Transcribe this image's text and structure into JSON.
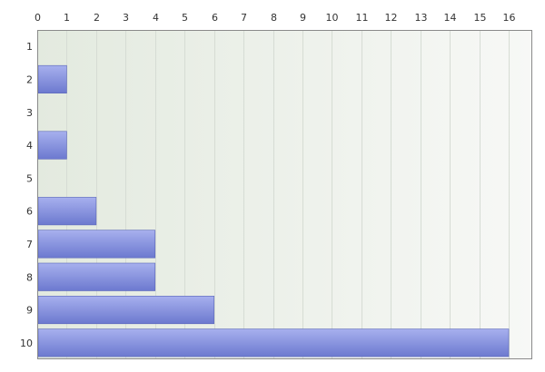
{
  "chart_data": {
    "type": "bar",
    "orientation": "horizontal",
    "categories": [
      "1",
      "2",
      "3",
      "4",
      "5",
      "6",
      "7",
      "8",
      "9",
      "10"
    ],
    "values": [
      0,
      1,
      0,
      1,
      0,
      2,
      4,
      4,
      6,
      16
    ],
    "x_ticks": [
      "0",
      "1",
      "2",
      "3",
      "4",
      "5",
      "6",
      "7",
      "8",
      "9",
      "10",
      "11",
      "12",
      "13",
      "14",
      "15",
      "16"
    ],
    "xlim": [
      0,
      16.8
    ],
    "x_axis_position": "top",
    "grid": true,
    "legend": "none",
    "title": "",
    "xlabel": "",
    "ylabel": "",
    "colors": {
      "bar_top": "#a7b0ee",
      "bar_bottom": "#6c79cf",
      "bar_edge": "#5a66b8",
      "plot_bg_left": "#e3eadf",
      "plot_bg_right": "#f7f8f6",
      "grid": "#d6dcd4",
      "axis": "#8a8a8a",
      "text": "#333333"
    }
  }
}
